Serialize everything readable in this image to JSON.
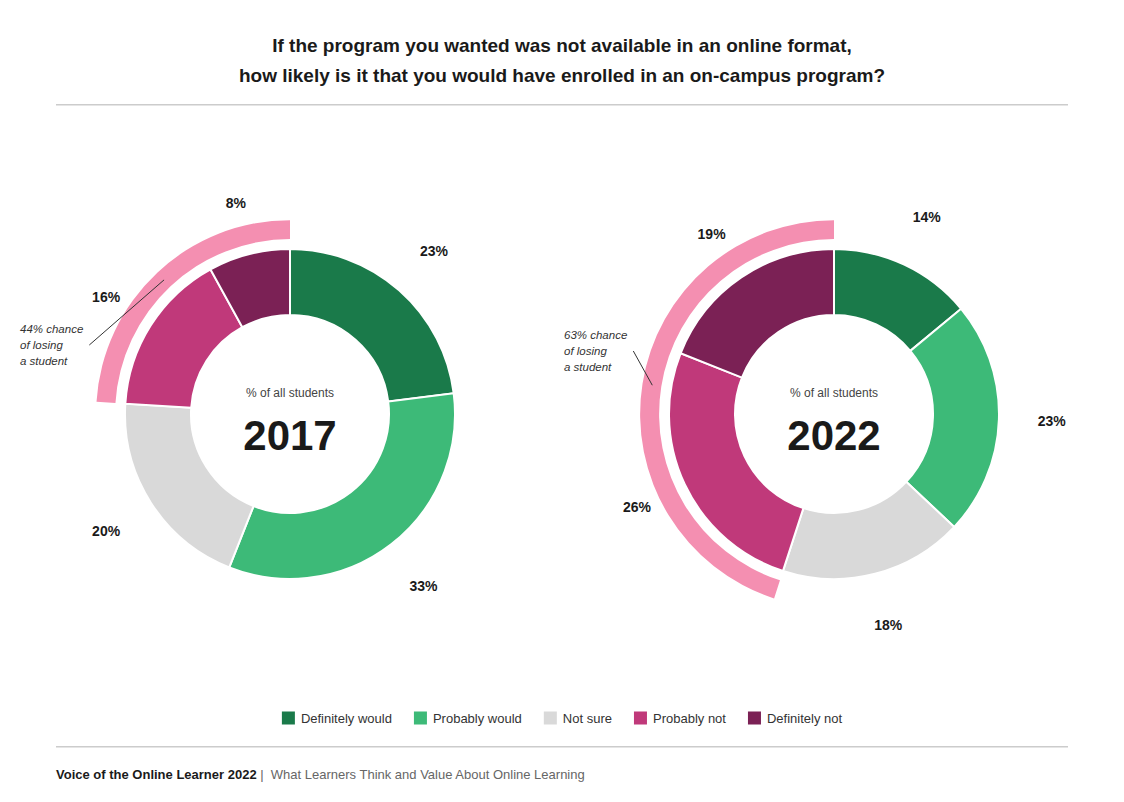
{
  "chart_data": [
    {
      "type": "donut",
      "title": "If the program you wanted was not available in an online format,",
      "subtitle": "how likely is it that you would have enrolled in an on-campus program?",
      "center_label": "% of all students",
      "center_title": "2017",
      "categories": [
        "Definitely would",
        "Probably would",
        "Not sure",
        "Probably not",
        "Definitely not"
      ],
      "values": [
        23,
        33,
        20,
        16,
        8
      ],
      "value_labels": [
        "23%",
        "33%",
        "20%",
        "16%",
        "8%"
      ],
      "colors": [
        "#1a7a4a",
        "#3dba78",
        "#d9d9d9",
        "#c0397a",
        "#7b2155"
      ],
      "highlight_color": "#f48fb1",
      "annotations": [
        "44% chance",
        "of losing",
        "a student"
      ],
      "data_labels": true,
      "legend": "bottom",
      "footer": [
        "Voice of the Online Learner 2022",
        " |  What Learners Think and Value About Online Learning"
      ]
    },
    {
      "type": "donut",
      "center_label": "% of all students",
      "center_title": "2022",
      "categories": [
        "Definitely would",
        "Probably would",
        "Not sure",
        "Probably not",
        "Definitely not"
      ],
      "values": [
        14,
        23,
        18,
        26,
        19
      ],
      "value_labels": [
        "14%",
        "23%",
        "18%",
        "26%",
        "19%"
      ],
      "colors": [
        "#1a7a4a",
        "#3dba78",
        "#d9d9d9",
        "#c0397a",
        "#7b2155"
      ],
      "highlight_color": "#f48fb1",
      "annotations": [
        "63% chance",
        "of losing",
        "a student"
      ],
      "data_labels": true
    }
  ]
}
